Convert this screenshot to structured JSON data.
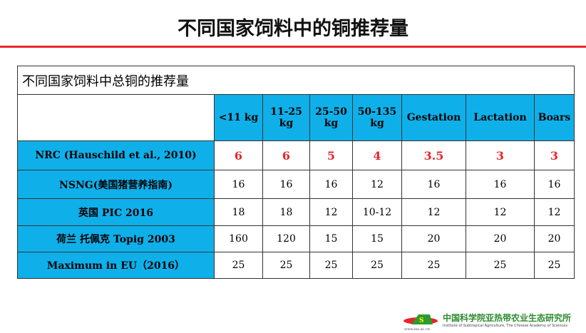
{
  "title": "不同国家饲料中的铜推荐量",
  "table": {
    "caption": "不同国家饲料中总铜的推荐量",
    "headers": [
      "<11 kg",
      "11-25 kg",
      "25-50 kg",
      "50-135 kg",
      "Gestation",
      "Lactation",
      "Boars"
    ],
    "rows": [
      {
        "label": "NRC (Hauschild et al., 2010)",
        "values": [
          "6",
          "6",
          "5",
          "4",
          "3.5",
          "3",
          "3"
        ],
        "highlight": true
      },
      {
        "label": "NSNG(美国猪营养指南)",
        "values": [
          "16",
          "16",
          "16",
          "12",
          "16",
          "16",
          "16"
        ]
      },
      {
        "label": "英国 PIC 2016",
        "values": [
          "18",
          "18",
          "12",
          "10-12",
          "12",
          "12",
          "12"
        ]
      },
      {
        "label": "荷兰 托佩克 Topig 2003",
        "values": [
          "160",
          "120",
          "15",
          "15",
          "20",
          "20",
          "20"
        ]
      },
      {
        "label": "Maximum in EU（2016）",
        "values": [
          "25",
          "25",
          "25",
          "25",
          "25",
          "25",
          "25"
        ]
      }
    ]
  },
  "logo": {
    "name_cn": "中国科学院亚热带农业生态研究所",
    "name_en": "Institute of Subtropical Agriculture, The Chinese Academy of Sciences",
    "url": "www.isa.ac.cn"
  },
  "colors": {
    "accent": "#e8262b",
    "header": "#0fb0ea"
  }
}
